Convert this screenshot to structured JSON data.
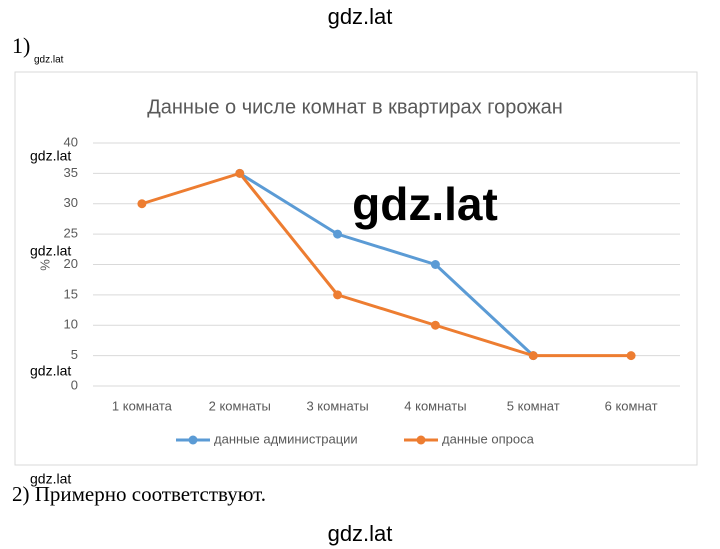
{
  "header": {
    "watermark": "gdz.lat"
  },
  "task1": {
    "number": "1)",
    "watermark": "gdz.lat"
  },
  "chart_data": {
    "type": "line",
    "title": "Данные о числе комнат в квартирах горожан",
    "y_label": "%",
    "categories": [
      "1 комната",
      "2 комнаты",
      "3 комнаты",
      "4 комнаты",
      "5 комнат",
      "6 комнат"
    ],
    "series": [
      {
        "name": "данные администрации",
        "color": "#5b9bd5",
        "values": [
          null,
          35,
          25,
          20,
          5,
          null
        ]
      },
      {
        "name": "данные опроса",
        "color": "#ed7d31",
        "values": [
          30,
          35,
          15,
          10,
          5,
          5
        ]
      }
    ],
    "ylim": [
      0,
      40
    ],
    "yticks": [
      0,
      5,
      10,
      15,
      20,
      25,
      30,
      35,
      40
    ],
    "grid": true,
    "legend": "bottom"
  },
  "watermarks": [
    "gdz.lat",
    "gdz.lat",
    "gdz.lat",
    "gdz.lat",
    "gdz.lat"
  ],
  "task2": {
    "text": "2) Примерно соответствуют."
  },
  "footer": {
    "watermark": "gdz.lat"
  }
}
